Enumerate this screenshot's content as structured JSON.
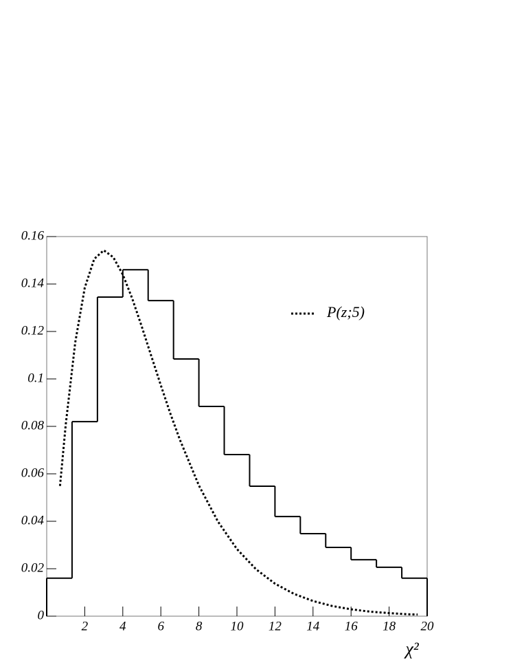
{
  "chart_data": {
    "type": "histogram",
    "xlabel": "χ²",
    "bins": [
      0,
      1.333,
      2.667,
      4,
      5.333,
      6.667,
      8,
      9.333,
      10.667,
      12,
      13.333,
      14.667,
      16,
      17.333,
      18.667,
      20
    ],
    "values": [
      0.016,
      0.082,
      0.1345,
      0.146,
      0.133,
      0.1084,
      0.0884,
      0.0681,
      0.0548,
      0.042,
      0.0348,
      0.029,
      0.0238,
      0.0206,
      0.016
    ],
    "color": "#000000",
    "series": [
      {
        "name": "P(z;5)",
        "type": "line",
        "color": "#000000",
        "dashed": true,
        "x": [
          0.7,
          1,
          1.5,
          2,
          2.5,
          3,
          3.5,
          4,
          4.5,
          5,
          5.5,
          6,
          6.5,
          7,
          8,
          9,
          10,
          11,
          12,
          13,
          14,
          15,
          16,
          17,
          18,
          19,
          19.5
        ],
        "values": [
          0.0549,
          0.0807,
          0.1154,
          0.1384,
          0.1506,
          0.1542,
          0.1513,
          0.144,
          0.1338,
          0.122,
          0.1096,
          0.0973,
          0.0854,
          0.0744,
          0.0551,
          0.0399,
          0.0283,
          0.0198,
          0.0137,
          0.0094,
          0.0064,
          0.0043,
          0.0029,
          0.0019,
          0.0013,
          0.0008,
          0.0007
        ]
      }
    ],
    "xlim": [
      0,
      20
    ],
    "xticks": [
      2,
      4,
      6,
      8,
      10,
      12,
      14,
      16,
      18,
      20
    ],
    "ylim": [
      0,
      0.16
    ],
    "yticks": [
      0,
      0.02,
      0.04,
      0.06,
      0.08,
      0.1,
      0.12,
      0.14,
      0.16
    ],
    "legend": "upper-right"
  }
}
